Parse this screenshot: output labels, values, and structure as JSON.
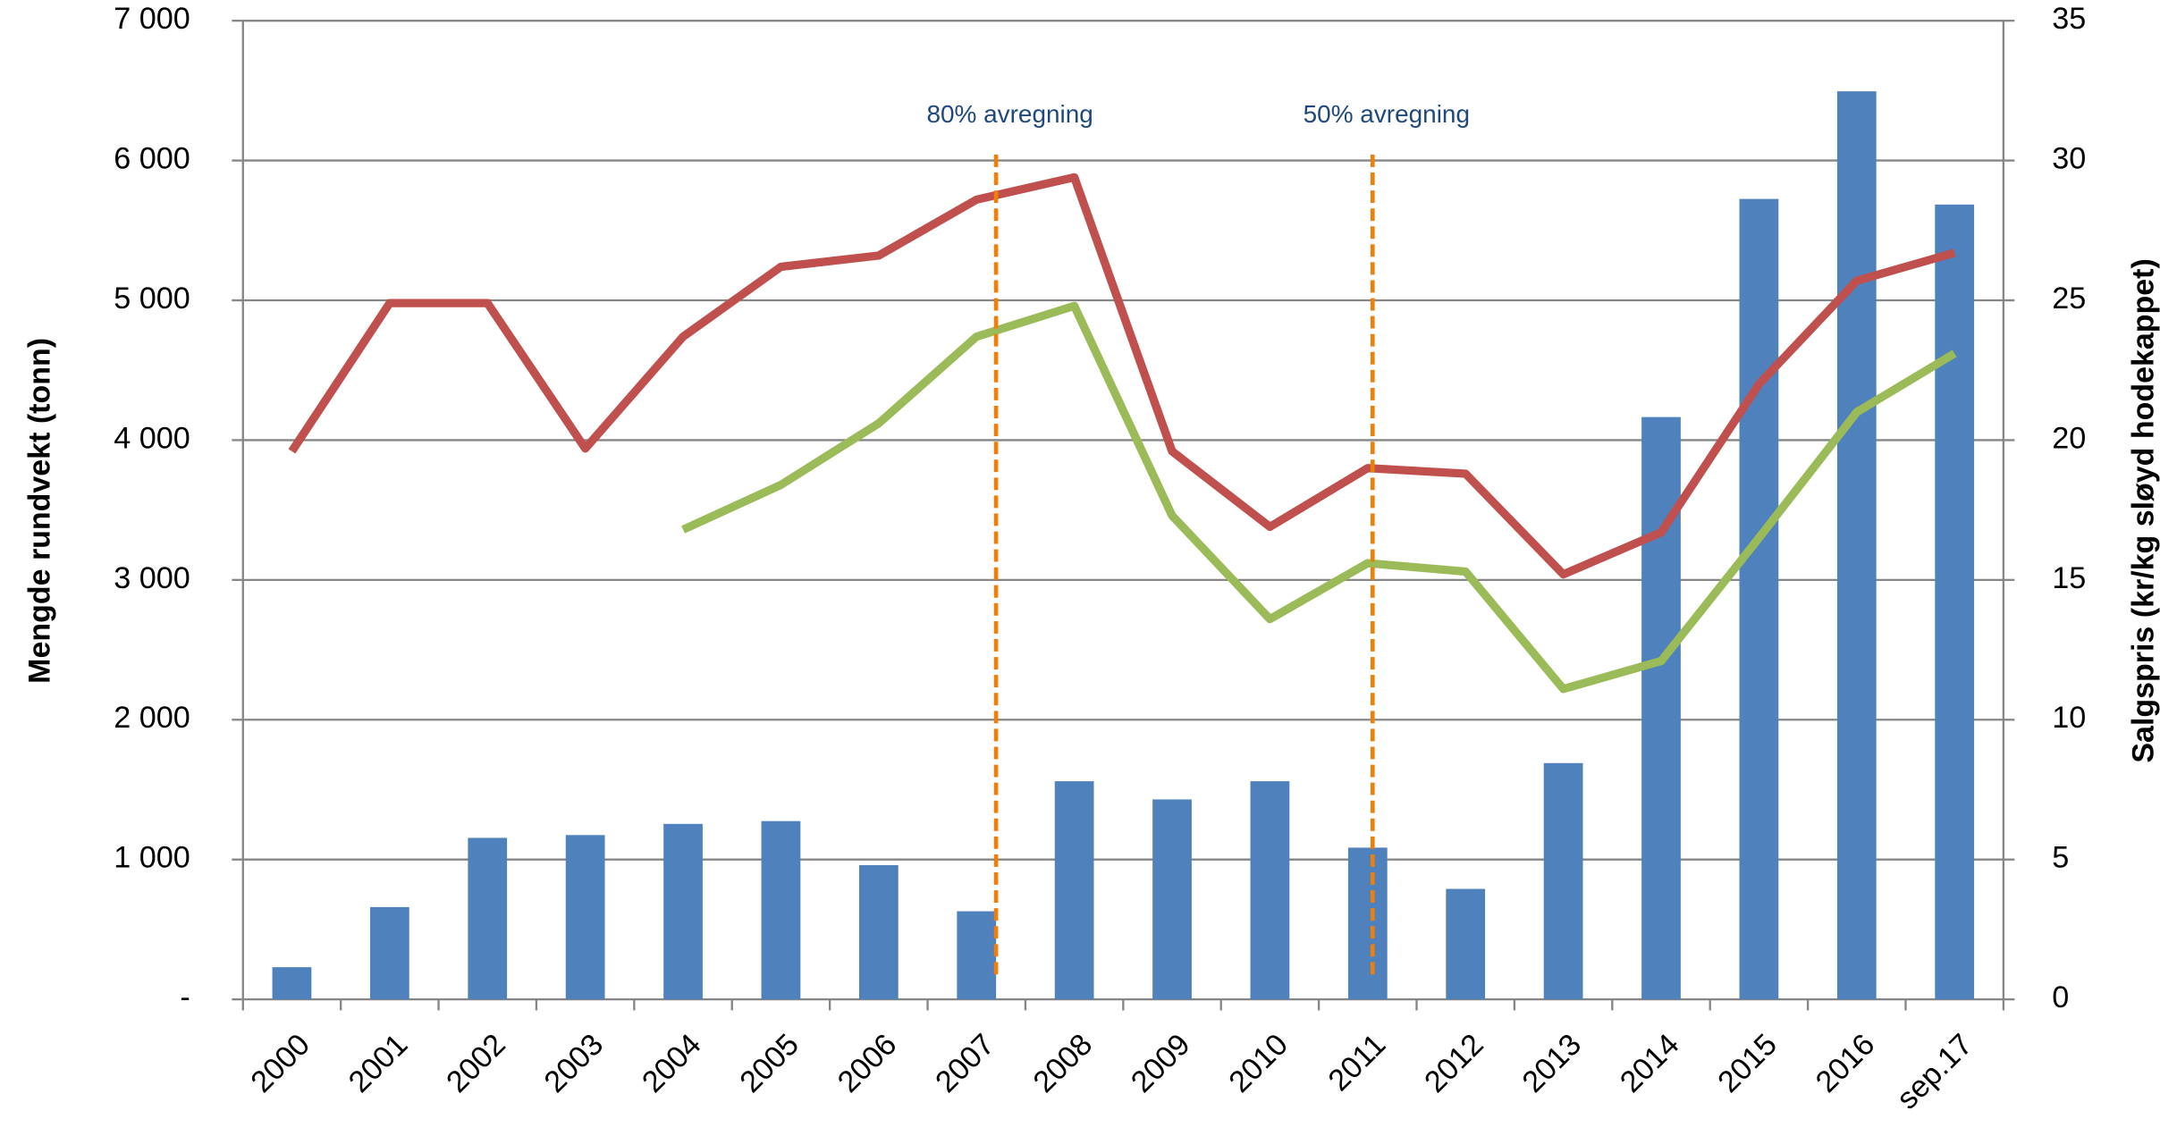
{
  "chart_data": {
    "type": "bar",
    "categories": [
      "2000",
      "2001",
      "2002",
      "2003",
      "2004",
      "2005",
      "2006",
      "2007",
      "2008",
      "2009",
      "2010",
      "2011",
      "2012",
      "2013",
      "2014",
      "2015",
      "2016",
      "sep.17"
    ],
    "series": [
      {
        "type": "bar",
        "color": "#4f81bd",
        "values": [
          230,
          660,
          1155,
          1175,
          1255,
          1275,
          960,
          630,
          1560,
          1430,
          1560,
          1085,
          790,
          1690,
          4165,
          5725,
          6495,
          5685
        ]
      },
      {
        "type": "line",
        "axis": "y2",
        "color": "#c0504d",
        "values": [
          19.6,
          24.9,
          24.9,
          19.7,
          23.7,
          26.2,
          26.6,
          28.6,
          29.4,
          19.6,
          16.9,
          19.0,
          18.8,
          15.2,
          16.7,
          22.0,
          25.7,
          26.7
        ]
      },
      {
        "type": "line",
        "axis": "y2",
        "color": "#9bbb59",
        "values": [
          null,
          null,
          null,
          null,
          16.8,
          18.4,
          20.6,
          23.7,
          24.8,
          17.3,
          13.6,
          15.6,
          15.3,
          11.1,
          12.1,
          16.5,
          21.0,
          23.1
        ]
      }
    ],
    "ylabel": "Mengde rundvekt (tonn)",
    "y2label": "Salgspris (kr/kg sløyd hodekappet)",
    "ylim": [
      0,
      7000
    ],
    "yticks": [
      {
        "value": 0,
        "label": "-"
      },
      {
        "value": 1000,
        "label": "1 000"
      },
      {
        "value": 2000,
        "label": "2 000"
      },
      {
        "value": 3000,
        "label": "3 000"
      },
      {
        "value": 4000,
        "label": "4 000"
      },
      {
        "value": 5000,
        "label": "5 000"
      },
      {
        "value": 6000,
        "label": "6 000"
      },
      {
        "value": 7000,
        "label": "7 000"
      }
    ],
    "y2lim": [
      0,
      35
    ],
    "y2ticks": [
      0,
      5,
      10,
      15,
      20,
      25,
      30,
      35
    ],
    "grid": true,
    "annotations": [
      "80% avregning",
      "50% avregning"
    ],
    "annotation_color": "#f07f09"
  }
}
